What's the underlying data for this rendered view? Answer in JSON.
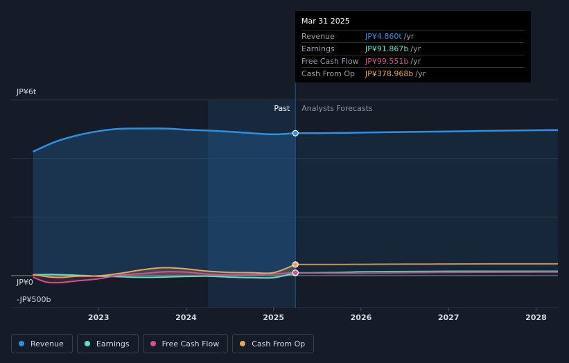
{
  "chart_data": {
    "type": "line",
    "y_axis": {
      "top_label": "JP¥6t",
      "zero_label": "JP¥0",
      "bottom_label": "-JP¥500b",
      "ylim": [
        -500,
        6000
      ],
      "unit": "billion JPY"
    },
    "x_axis": {
      "tick_labels": [
        "2023",
        "2024",
        "2025",
        "2026",
        "2027",
        "2028"
      ],
      "xlim": [
        2022.25,
        2028.25
      ]
    },
    "divider": {
      "past_label": "Past",
      "forecast_label": "Analysts Forecasts",
      "x": 2025.25
    },
    "series": [
      {
        "name": "Revenue",
        "color": "#2f8fe0",
        "area": true,
        "past": [
          [
            2022.25,
            4230
          ],
          [
            2022.5,
            4560
          ],
          [
            2022.75,
            4780
          ],
          [
            2023.0,
            4930
          ],
          [
            2023.25,
            5010
          ],
          [
            2023.5,
            5020
          ],
          [
            2023.75,
            5020
          ],
          [
            2024.0,
            4980
          ],
          [
            2024.25,
            4950
          ],
          [
            2024.5,
            4910
          ],
          [
            2024.75,
            4860
          ],
          [
            2025.0,
            4820
          ],
          [
            2025.25,
            4860
          ]
        ],
        "forecast": [
          [
            2025.25,
            4860
          ],
          [
            2025.5,
            4860
          ],
          [
            2026.0,
            4880
          ],
          [
            2026.5,
            4900
          ],
          [
            2027.0,
            4920
          ],
          [
            2027.5,
            4940
          ],
          [
            2028.0,
            4960
          ],
          [
            2028.25,
            4970
          ]
        ]
      },
      {
        "name": "Earnings",
        "color": "#5de0c4",
        "past": [
          [
            2022.25,
            30
          ],
          [
            2022.5,
            40
          ],
          [
            2022.75,
            10
          ],
          [
            2023.0,
            -20
          ],
          [
            2023.25,
            -40
          ],
          [
            2023.5,
            -60
          ],
          [
            2023.75,
            -50
          ],
          [
            2024.0,
            -30
          ],
          [
            2024.25,
            -20
          ],
          [
            2024.5,
            -50
          ],
          [
            2024.75,
            -70
          ],
          [
            2025.0,
            -70
          ],
          [
            2025.25,
            91.867
          ]
        ],
        "forecast": [
          [
            2025.25,
            91.867
          ],
          [
            2025.75,
            110
          ],
          [
            2026.0,
            130
          ],
          [
            2026.5,
            140
          ],
          [
            2027.0,
            150
          ],
          [
            2027.5,
            150
          ],
          [
            2028.0,
            150
          ],
          [
            2028.25,
            150
          ]
        ]
      },
      {
        "name": "Free Cash Flow",
        "color": "#d4508f",
        "past": [
          [
            2022.25,
            -50
          ],
          [
            2022.4,
            -220
          ],
          [
            2022.55,
            -240
          ],
          [
            2022.75,
            -180
          ],
          [
            2023.0,
            -110
          ],
          [
            2023.25,
            20
          ],
          [
            2023.5,
            70
          ],
          [
            2023.75,
            130
          ],
          [
            2024.0,
            120
          ],
          [
            2024.25,
            50
          ],
          [
            2024.5,
            20
          ],
          [
            2024.75,
            30
          ],
          [
            2025.0,
            60
          ],
          [
            2025.25,
            99.551
          ]
        ],
        "forecast": [
          [
            2025.25,
            99.551
          ],
          [
            2025.75,
            80
          ],
          [
            2026.0,
            80
          ],
          [
            2026.5,
            95
          ],
          [
            2027.0,
            110
          ],
          [
            2027.5,
            115
          ],
          [
            2028.0,
            120
          ],
          [
            2028.25,
            120
          ]
        ]
      },
      {
        "name": "Cash From Op",
        "color": "#e8a55a",
        "past": [
          [
            2022.25,
            40
          ],
          [
            2022.45,
            -50
          ],
          [
            2022.6,
            -60
          ],
          [
            2022.75,
            -20
          ],
          [
            2023.0,
            -10
          ],
          [
            2023.25,
            80
          ],
          [
            2023.5,
            200
          ],
          [
            2023.75,
            270
          ],
          [
            2024.0,
            230
          ],
          [
            2024.25,
            150
          ],
          [
            2024.5,
            110
          ],
          [
            2024.75,
            100
          ],
          [
            2025.0,
            100
          ],
          [
            2025.25,
            378.968
          ]
        ],
        "forecast": [
          [
            2025.25,
            378.968
          ],
          [
            2025.75,
            380
          ],
          [
            2026.0,
            385
          ],
          [
            2026.5,
            390
          ],
          [
            2027.0,
            395
          ],
          [
            2027.5,
            400
          ],
          [
            2028.0,
            400
          ],
          [
            2028.25,
            400
          ]
        ]
      }
    ]
  },
  "tooltip": {
    "date": "Mar 31 2025",
    "rows": [
      {
        "label": "Revenue",
        "value": "JP¥4.860t",
        "unit": "/yr",
        "color": "#2f8fe0"
      },
      {
        "label": "Earnings",
        "value": "JP¥91.867b",
        "unit": "/yr",
        "color": "#5de0c4"
      },
      {
        "label": "Free Cash Flow",
        "value": "JP¥99.551b",
        "unit": "/yr",
        "color": "#d4508f"
      },
      {
        "label": "Cash From Op",
        "value": "JP¥378.968b",
        "unit": "/yr",
        "color": "#e8a55a"
      }
    ]
  },
  "legend": [
    {
      "label": "Revenue",
      "color": "#2f8fe0"
    },
    {
      "label": "Earnings",
      "color": "#5de0c4"
    },
    {
      "label": "Free Cash Flow",
      "color": "#d4508f"
    },
    {
      "label": "Cash From Op",
      "color": "#e8a55a"
    }
  ]
}
